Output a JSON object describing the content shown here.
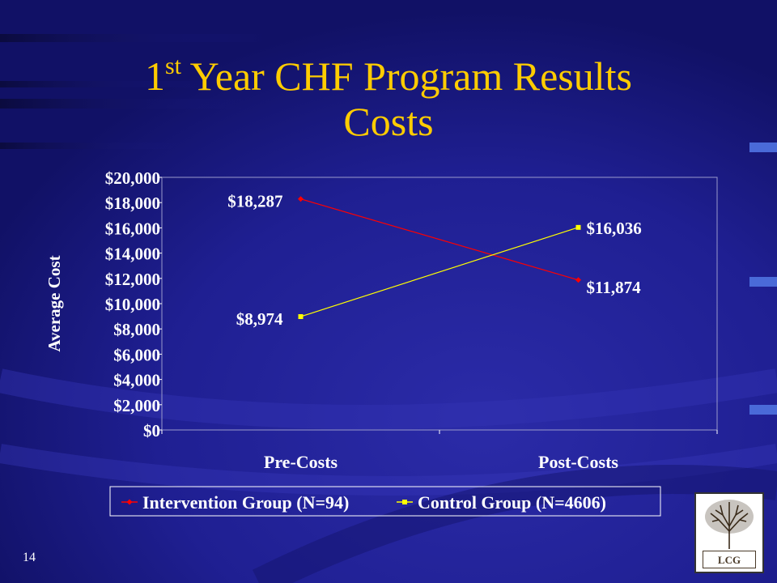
{
  "slide": {
    "title_prefix": "1",
    "title_sup": "st",
    "title_line1_rest": " Year CHF Program Results",
    "title_line2": "Costs",
    "slide_number": "14",
    "logo_text": "LCG",
    "colors": {
      "background": "#1c1c8c",
      "title": "#ffcc00"
    }
  },
  "chart_data": {
    "type": "line",
    "categories": [
      "Pre-Costs",
      "Post-Costs"
    ],
    "series": [
      {
        "name": "Intervention Group (N=94)",
        "values": [
          18287,
          11874
        ],
        "labels": [
          "$18,287",
          "$11,874"
        ],
        "color": "#ff0000",
        "marker": "diamond"
      },
      {
        "name": "Control Group (N=4606)",
        "values": [
          8974,
          16036
        ],
        "labels": [
          "$8,974",
          "$16,036"
        ],
        "color": "#ffff00",
        "marker": "square"
      }
    ],
    "ylabel": "Average Cost",
    "ylim": [
      0,
      20000
    ],
    "yticks": [
      {
        "v": 0,
        "label": "$0"
      },
      {
        "v": 2000,
        "label": "$2,000"
      },
      {
        "v": 4000,
        "label": "$4,000"
      },
      {
        "v": 6000,
        "label": "$6,000"
      },
      {
        "v": 8000,
        "label": "$8,000"
      },
      {
        "v": 10000,
        "label": "$10,000"
      },
      {
        "v": 12000,
        "label": "$12,000"
      },
      {
        "v": 14000,
        "label": "$14,000"
      },
      {
        "v": 16000,
        "label": "$16,000"
      },
      {
        "v": 18000,
        "label": "$18,000"
      },
      {
        "v": 20000,
        "label": "$20,000"
      }
    ],
    "legend_position": "bottom",
    "grid": false
  }
}
